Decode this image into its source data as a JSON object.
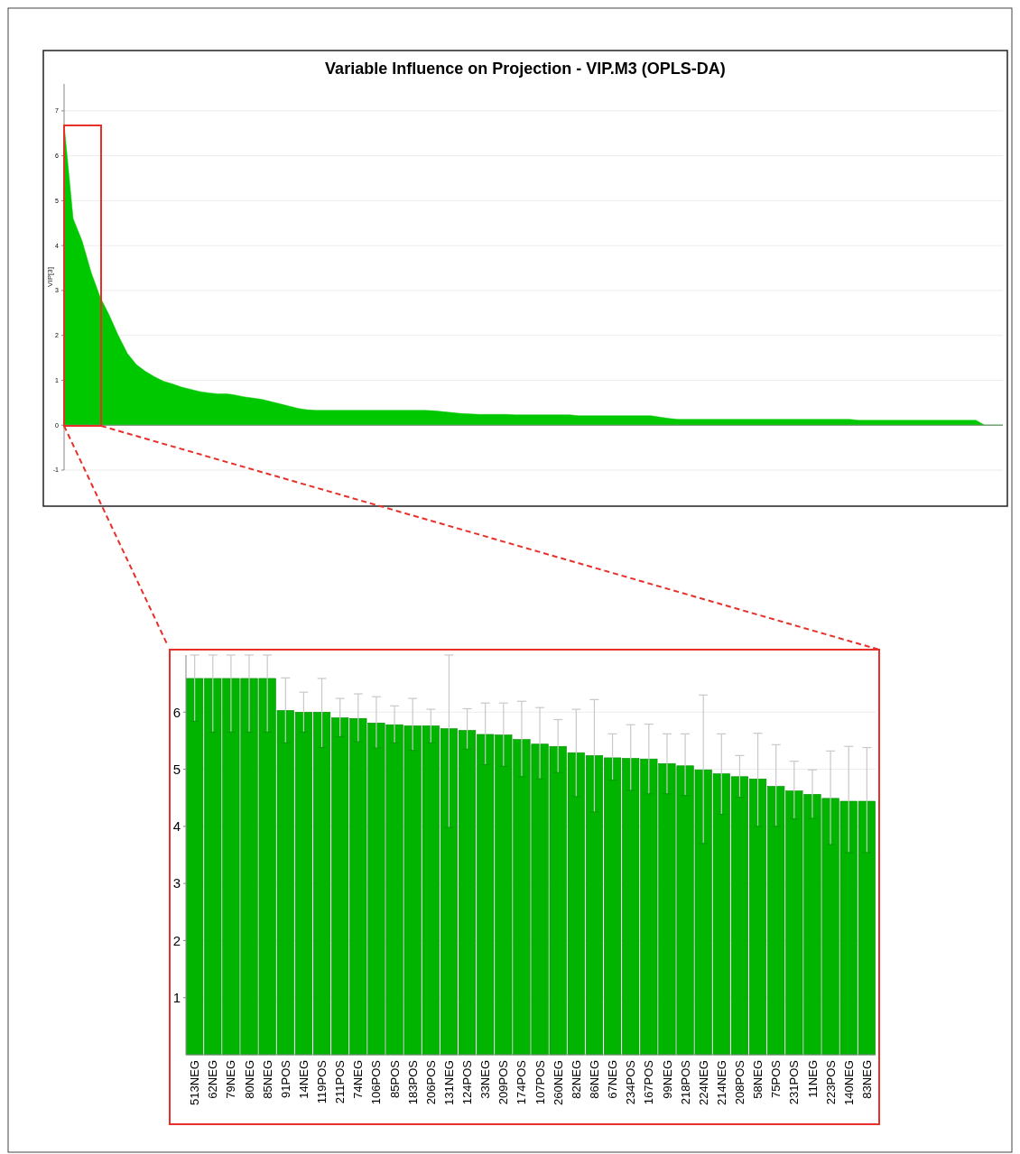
{
  "chart_data": [
    {
      "type": "area",
      "title": "Variable Influence on Projection - VIP.M3 (OPLS-DA)",
      "ylabel": "VIP[3]",
      "color": "#00c800",
      "categories": [
        null,
        null,
        null,
        null,
        null,
        null,
        null,
        null,
        null,
        null,
        null,
        null,
        null,
        null,
        null,
        null,
        null,
        null,
        null,
        null,
        null,
        null,
        null,
        null,
        null,
        null,
        null,
        null,
        null,
        null,
        null,
        null,
        null,
        null,
        null,
        null,
        null,
        null,
        null,
        null,
        null,
        null,
        null,
        null,
        null,
        null,
        null,
        null,
        null,
        null,
        null,
        null,
        null,
        null,
        null,
        null,
        null,
        null,
        null,
        null,
        null,
        null,
        null,
        null,
        null,
        null,
        null,
        null,
        null,
        null,
        null,
        null,
        null,
        null,
        null,
        null,
        null,
        null,
        null,
        null,
        null,
        null,
        null,
        null,
        null,
        null,
        null,
        null,
        null,
        null,
        null,
        null,
        null,
        null,
        null,
        null,
        null,
        null,
        null,
        null,
        null,
        null,
        null,
        null,
        null
      ],
      "values": [
        6.7,
        4.6,
        4.1,
        3.4,
        2.85,
        2.45,
        2.0,
        1.6,
        1.35,
        1.2,
        1.08,
        0.98,
        0.92,
        0.85,
        0.8,
        0.75,
        0.72,
        0.7,
        0.7,
        0.67,
        0.63,
        0.6,
        0.57,
        0.52,
        0.47,
        0.42,
        0.37,
        0.34,
        0.33,
        0.33,
        0.33,
        0.33,
        0.33,
        0.33,
        0.33,
        0.33,
        0.33,
        0.33,
        0.33,
        0.33,
        0.33,
        0.32,
        0.3,
        0.28,
        0.26,
        0.25,
        0.24,
        0.24,
        0.24,
        0.24,
        0.23,
        0.23,
        0.23,
        0.23,
        0.23,
        0.23,
        0.23,
        0.21,
        0.21,
        0.21,
        0.21,
        0.21,
        0.21,
        0.21,
        0.21,
        0.21,
        0.18,
        0.15,
        0.13,
        0.13,
        0.13,
        0.13,
        0.13,
        0.13,
        0.13,
        0.13,
        0.13,
        0.13,
        0.13,
        0.13,
        0.13,
        0.13,
        0.13,
        0.13,
        0.13,
        0.13,
        0.13,
        0.13,
        0.11,
        0.11,
        0.11,
        0.11,
        0.11,
        0.11,
        0.11,
        0.11,
        0.11,
        0.11,
        0.11,
        0.11,
        0.11,
        0.11,
        0,
        0,
        0
      ],
      "ylim": [
        -1,
        7.6
      ],
      "yticks": [
        -1,
        0,
        1,
        2,
        3,
        4,
        5,
        6,
        7
      ],
      "grid": "y"
    },
    {
      "type": "bar",
      "color": "#00b400",
      "categories": [
        "513NEG",
        "62NEG",
        "79NEG",
        "80NEG",
        "85NEG",
        "91POS",
        "14NEG",
        "119POS",
        "211POS",
        "74NEG",
        "106POS",
        "85POS",
        "183POS",
        "206POS",
        "131NEG",
        "124POS",
        "33NEG",
        "209POS",
        "174POS",
        "107POS",
        "260NEG",
        "82NEG",
        "86NEG",
        "67NEG",
        "234POS",
        "167POS",
        "99NEG",
        "218POS",
        "224NEG",
        "214NEG",
        "208POS",
        "58NEG",
        "75POS",
        "231POS",
        "11NEG",
        "223POS",
        "140NEG",
        "83NEG"
      ],
      "values": [
        6.59,
        6.59,
        6.59,
        6.59,
        6.59,
        6.03,
        6.0,
        6.0,
        5.9,
        5.89,
        5.81,
        5.78,
        5.76,
        5.76,
        5.71,
        5.68,
        5.61,
        5.6,
        5.52,
        5.44,
        5.4,
        5.29,
        5.24,
        5.2,
        5.19,
        5.18,
        5.1,
        5.06,
        4.99,
        4.92,
        4.87,
        4.83,
        4.7,
        4.62,
        4.56,
        4.49,
        4.44,
        4.44
      ],
      "errors": [
        [
          5.84,
          7
        ],
        [
          5.65,
          7
        ],
        [
          5.65,
          7
        ],
        [
          5.65,
          7
        ],
        [
          5.65,
          7
        ],
        [
          5.46,
          6.6
        ],
        [
          5.65,
          6.35
        ],
        [
          5.38,
          6.59
        ],
        [
          5.57,
          6.24
        ],
        [
          5.48,
          6.32
        ],
        [
          5.37,
          6.27
        ],
        [
          5.46,
          6.11
        ],
        [
          5.33,
          6.24
        ],
        [
          5.46,
          6.05
        ],
        [
          3.98,
          7
        ],
        [
          5.35,
          6.06
        ],
        [
          5.08,
          6.16
        ],
        [
          5.05,
          6.16
        ],
        [
          4.87,
          6.19
        ],
        [
          4.83,
          6.08
        ],
        [
          4.94,
          5.87
        ],
        [
          4.52,
          6.05
        ],
        [
          4.25,
          6.22
        ],
        [
          4.81,
          5.62
        ],
        [
          4.63,
          5.78
        ],
        [
          4.57,
          5.79
        ],
        [
          4.57,
          5.62
        ],
        [
          4.54,
          5.62
        ],
        [
          3.7,
          6.3
        ],
        [
          4.21,
          5.62
        ],
        [
          4.51,
          5.24
        ],
        [
          4.0,
          5.63
        ],
        [
          4.0,
          5.43
        ],
        [
          4.13,
          5.14
        ],
        [
          4.14,
          4.99
        ],
        [
          3.68,
          5.32
        ],
        [
          3.54,
          5.4
        ],
        [
          3.54,
          5.38
        ]
      ],
      "ylim": [
        0,
        7
      ],
      "yticks": [
        1,
        2,
        3,
        4,
        5,
        6
      ],
      "grid": "y"
    }
  ]
}
